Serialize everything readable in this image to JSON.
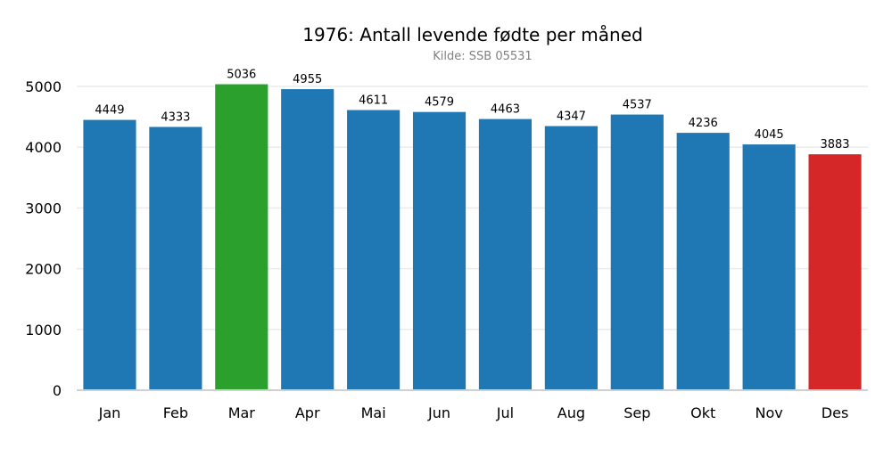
{
  "chart_data": {
    "type": "bar",
    "title": "1976: Antall levende fødte per måned",
    "subtitle": "Kilde: SSB 05531",
    "xlabel": "",
    "ylabel": "",
    "categories": [
      "Jan",
      "Feb",
      "Mar",
      "Apr",
      "Mai",
      "Jun",
      "Jul",
      "Aug",
      "Sep",
      "Okt",
      "Nov",
      "Des"
    ],
    "values": [
      4449,
      4333,
      5036,
      4955,
      4611,
      4579,
      4463,
      4347,
      4537,
      4236,
      4045,
      3883
    ],
    "ylim": [
      0,
      5000
    ],
    "yticks": [
      "0",
      "1000",
      "2000",
      "3000",
      "4000",
      "5000"
    ],
    "grid": true,
    "colors": {
      "default": "#1f77b4",
      "max": "#2ca02c",
      "min": "#d62728"
    }
  }
}
